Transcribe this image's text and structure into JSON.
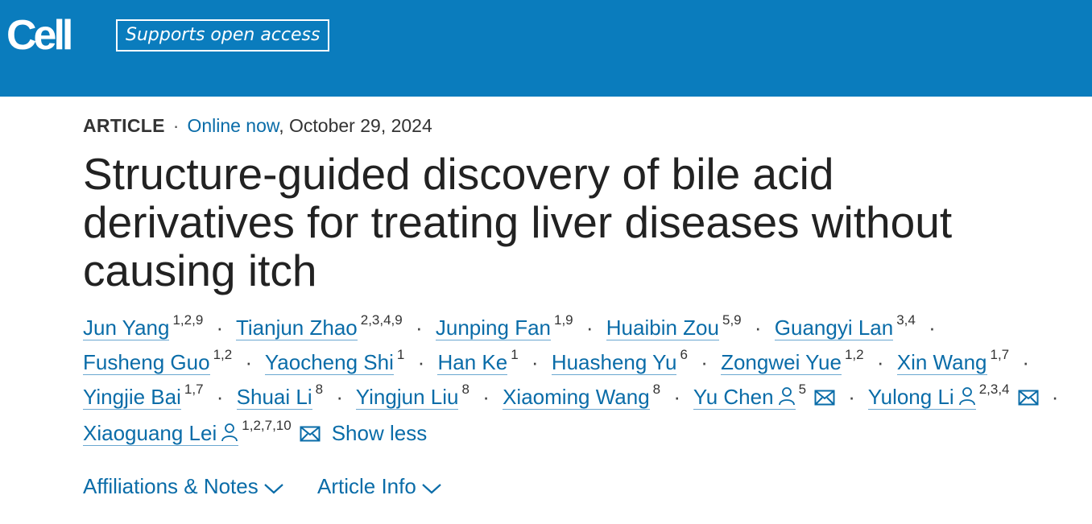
{
  "header": {
    "logo": "Cell",
    "badge": "Supports open access",
    "color": "#0a7cbd"
  },
  "meta": {
    "type": "ARTICLE",
    "separator": "·",
    "status": "Online now",
    "date": ", October 29, 2024"
  },
  "title": "Structure-guided discovery of bile acid derivatives for treating liver diseases without causing itch",
  "authors": [
    {
      "name": "Jun Yang",
      "aff": "1,2,9"
    },
    {
      "name": "Tianjun Zhao",
      "aff": "2,3,4,9"
    },
    {
      "name": "Junping Fan",
      "aff": "1,9"
    },
    {
      "name": "Huaibin Zou",
      "aff": "5,9"
    },
    {
      "name": "Guangyi Lan",
      "aff": "3,4"
    },
    {
      "name": "Fusheng Guo",
      "aff": "1,2"
    },
    {
      "name": "Yaocheng Shi",
      "aff": "1"
    },
    {
      "name": "Han Ke",
      "aff": "1"
    },
    {
      "name": "Huasheng Yu",
      "aff": "6"
    },
    {
      "name": "Zongwei Yue",
      "aff": "1,2"
    },
    {
      "name": "Xin Wang",
      "aff": "1,7"
    },
    {
      "name": "Yingjie Bai",
      "aff": "1,7"
    },
    {
      "name": "Shuai Li",
      "aff": "8"
    },
    {
      "name": "Yingjun Liu",
      "aff": "8"
    },
    {
      "name": "Xiaoming Wang",
      "aff": "8"
    },
    {
      "name": "Yu Chen",
      "aff": "5",
      "profile": true,
      "email": true
    },
    {
      "name": "Yulong Li",
      "aff": "2,3,4",
      "profile": true,
      "email": true
    },
    {
      "name": "Xiaoguang Lei",
      "aff": "1,2,7,10",
      "profile": true,
      "email": true
    }
  ],
  "show_less": "Show less",
  "expanders": {
    "affiliations": "Affiliations & Notes",
    "article_info": "Article Info"
  },
  "icons": {
    "profile": "person-icon",
    "email": "envelope-icon",
    "chevron": "chevron-down-icon"
  }
}
